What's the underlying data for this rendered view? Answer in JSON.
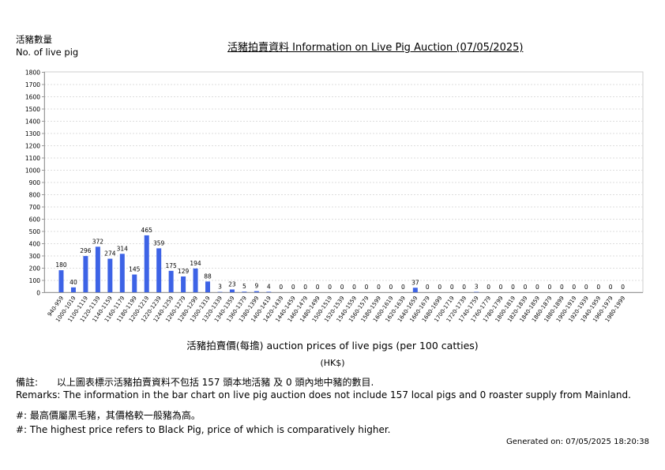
{
  "y_axis_label": {
    "zh": "活豬數量",
    "en": "No. of live pig"
  },
  "title": "活豬拍賣資料 Information on Live Pig Auction (07/05/2025)",
  "x_axis_title": "活豬拍賣價(每擔) auction prices of live pigs (per 100 catties)",
  "x_axis_unit": "(HK$)",
  "remarks": {
    "zh_label": "備註:",
    "zh_text": "以上圖表標示活豬拍賣資料不包括 157 頭本地活豬 及 0 頭內地中豬的數目.",
    "en": "Remarks: The information in the bar chart on live pig auction does not include 157 local pigs and 0 roaster supply from Mainland."
  },
  "notes": {
    "zh": "#: 最高價屬黑毛豬，其價格較一般豬為高。",
    "en": "#: The highest price refers to Black Pig, price of which is comparatively higher."
  },
  "generated": "Generated on: 07/05/2025 18:20:38",
  "colors": {
    "bar": "#3d63e6",
    "grid": "#dddddd",
    "axis": "#999999"
  },
  "chart_data": {
    "type": "bar",
    "title": "活豬拍賣資料 Information on Live Pig Auction (07/05/2025)",
    "xlabel": "活豬拍賣價(每擔) auction prices of live pigs (per 100 catties) (HK$)",
    "ylabel": "活豬數量 No. of live pig",
    "ylim": [
      0,
      1800
    ],
    "yticks": [
      0,
      100,
      200,
      300,
      400,
      500,
      600,
      700,
      800,
      900,
      1000,
      1100,
      1200,
      1300,
      1400,
      1500,
      1600,
      1700,
      1800
    ],
    "grid": true,
    "legend": "none",
    "categories": [
      "940-959",
      "1000-1019",
      "1100-1119",
      "1120-1139",
      "1140-1159",
      "1160-1179",
      "1180-1199",
      "1200-1219",
      "1220-1239",
      "1240-1259",
      "1260-1279",
      "1280-1299",
      "1300-1319",
      "1320-1339",
      "1340-1359",
      "1360-1379",
      "1380-1399",
      "1400-1419",
      "1420-1439",
      "1440-1459",
      "1460-1479",
      "1480-1499",
      "1500-1519",
      "1520-1539",
      "1540-1559",
      "1560-1579",
      "1580-1599",
      "1600-1619",
      "1620-1639",
      "1640-1659",
      "1660-1679",
      "1680-1699",
      "1700-1719",
      "1720-1739",
      "1740-1759",
      "1760-1779",
      "1780-1799",
      "1800-1819",
      "1820-1839",
      "1840-1859",
      "1860-1879",
      "1880-1899",
      "1900-1919",
      "1920-1939",
      "1940-1959",
      "1960-1979",
      "1980-1999"
    ],
    "values": [
      180,
      40,
      296,
      372,
      274,
      314,
      145,
      465,
      359,
      175,
      129,
      194,
      88,
      3,
      23,
      5,
      9,
      4,
      0,
      0,
      0,
      0,
      0,
      0,
      0,
      0,
      0,
      0,
      0,
      37,
      0,
      0,
      0,
      0,
      3,
      0,
      0,
      0,
      0,
      0,
      0,
      0,
      0,
      0,
      0,
      0,
      0
    ]
  }
}
